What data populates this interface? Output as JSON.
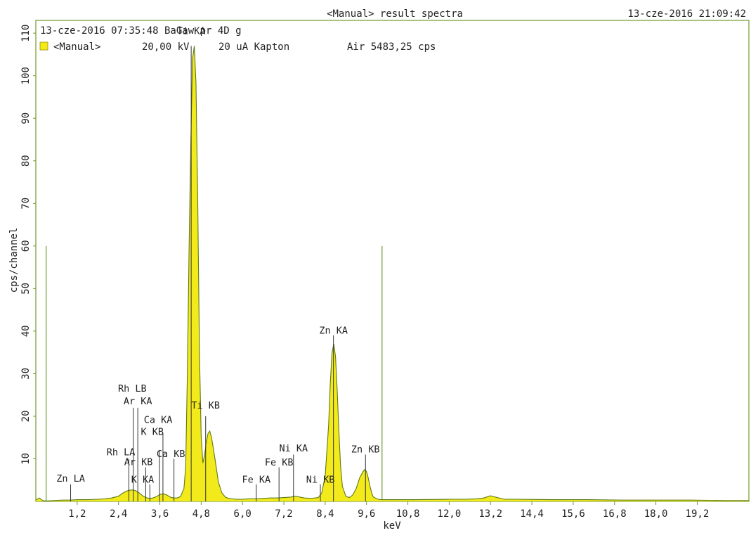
{
  "header": {
    "title": "<Manual> result spectra",
    "datetime": "13-cze-2016 21:09:42"
  },
  "info": {
    "sample_line": "13-cze-2016 07:35:48 BaGaw pr 4D g",
    "legend_label": "<Manual>",
    "voltage": "20,00 kV",
    "current_filter": "20 uA Kapton",
    "atmosphere_rate": "Air 5483,25 cps"
  },
  "colors": {
    "fill": "#f2ea1a",
    "outline": "#5f7a17",
    "frame": "#6e9a2e",
    "marker": "#333333",
    "legend_swatch": "#f2ea1a"
  },
  "chart_data": {
    "type": "area",
    "title": "<Manual> result spectra",
    "xlabel": "keV",
    "ylabel": "cps/channel",
    "xlim": [
      0,
      20.7
    ],
    "ylim": [
      0,
      113
    ],
    "x_ticks": [
      "1,2",
      "2,4",
      "3,6",
      "4,8",
      "6,0",
      "7,2",
      "8,4",
      "9,6",
      "10,8",
      "12,0",
      "13,2",
      "14,4",
      "15,6",
      "16,8",
      "18,0",
      "19,2"
    ],
    "x_tick_values": [
      1.2,
      2.4,
      3.6,
      4.8,
      6.0,
      7.2,
      8.4,
      9.6,
      10.8,
      12.0,
      13.2,
      14.4,
      15.6,
      16.8,
      18.0,
      19.2
    ],
    "y_ticks": [
      "10",
      "20",
      "30",
      "40",
      "50",
      "60",
      "70",
      "80",
      "90",
      "100",
      "110"
    ],
    "y_tick_values": [
      10,
      20,
      30,
      40,
      50,
      60,
      70,
      80,
      90,
      100,
      110
    ],
    "region_of_interest": [
      0.3,
      10.05
    ],
    "region_marker_height": 60,
    "spectrum": {
      "x": [
        0.0,
        0.1,
        0.2,
        0.3,
        0.5,
        0.8,
        1.0,
        1.2,
        1.5,
        1.8,
        2.0,
        2.2,
        2.4,
        2.5,
        2.6,
        2.7,
        2.8,
        2.9,
        3.0,
        3.1,
        3.2,
        3.3,
        3.4,
        3.5,
        3.6,
        3.7,
        3.8,
        3.9,
        4.0,
        4.1,
        4.2,
        4.3,
        4.35,
        4.4,
        4.45,
        4.5,
        4.55,
        4.6,
        4.65,
        4.7,
        4.75,
        4.8,
        4.85,
        4.9,
        4.95,
        5.0,
        5.05,
        5.1,
        5.2,
        5.3,
        5.4,
        5.5,
        5.6,
        5.8,
        6.0,
        6.2,
        6.4,
        6.6,
        6.8,
        7.0,
        7.2,
        7.4,
        7.5,
        7.6,
        7.8,
        8.0,
        8.2,
        8.3,
        8.4,
        8.5,
        8.55,
        8.6,
        8.65,
        8.7,
        8.75,
        8.8,
        8.85,
        8.9,
        9.0,
        9.1,
        9.2,
        9.3,
        9.4,
        9.5,
        9.55,
        9.6,
        9.65,
        9.7,
        9.75,
        9.8,
        9.9,
        10.0,
        10.5,
        11.0,
        12.0,
        12.5,
        12.8,
        13.0,
        13.2,
        13.4,
        13.6,
        14.0,
        15.0,
        16.0,
        17.0,
        18.0,
        19.0,
        20.0,
        20.7
      ],
      "y": [
        0.3,
        0.8,
        0.2,
        0.1,
        0.2,
        0.3,
        0.3,
        0.4,
        0.4,
        0.5,
        0.6,
        0.8,
        1.2,
        1.8,
        2.3,
        2.6,
        2.7,
        2.5,
        2.0,
        1.3,
        0.9,
        0.7,
        0.8,
        1.1,
        1.6,
        1.8,
        1.5,
        1.0,
        0.8,
        0.8,
        1.1,
        3.0,
        8.0,
        30.0,
        60.0,
        85.0,
        104.0,
        107.0,
        98.0,
        70.0,
        35.0,
        15.0,
        9.0,
        11.0,
        14.0,
        16.0,
        16.5,
        15.0,
        10.0,
        4.5,
        2.0,
        1.0,
        0.7,
        0.5,
        0.5,
        0.6,
        0.6,
        0.7,
        0.8,
        0.8,
        0.9,
        1.0,
        1.2,
        1.1,
        0.8,
        0.7,
        0.9,
        2.0,
        6.0,
        18.0,
        28.0,
        35.0,
        37.0,
        34.0,
        26.0,
        16.0,
        8.0,
        3.5,
        1.2,
        0.9,
        1.5,
        3.0,
        5.5,
        7.0,
        7.5,
        7.0,
        5.5,
        3.6,
        2.0,
        1.0,
        0.6,
        0.4,
        0.4,
        0.4,
        0.5,
        0.5,
        0.6,
        0.8,
        1.3,
        0.9,
        0.5,
        0.5,
        0.4,
        0.4,
        0.3,
        0.3,
        0.3,
        0.2,
        0.2
      ]
    },
    "peak_labels": [
      {
        "label": "Zn LA",
        "energy": 1.01,
        "line_top": 4,
        "text_y": 4.6,
        "label_x": 1.01
      },
      {
        "label": "Rh LA",
        "energy": 2.7,
        "line_top": 10,
        "text_y": 10.8,
        "label_x": 2.47
      },
      {
        "label": "Ar KA",
        "energy": 2.96,
        "line_top": 22,
        "text_y": 22.8,
        "label_x": 2.96
      },
      {
        "label": "Rh LB",
        "energy": 2.83,
        "line_top": 22,
        "text_y": 25.8,
        "label_x": 2.8
      },
      {
        "label": "Ar KB",
        "energy": 3.19,
        "line_top": 8,
        "text_y": 8.5,
        "label_x": 2.98
      },
      {
        "label": "K KA",
        "energy": 3.31,
        "line_top": 4,
        "text_y": 4.4,
        "label_x": 3.1
      },
      {
        "label": "K KB",
        "energy": 3.59,
        "line_top": 12,
        "text_y": 15.6,
        "label_x": 3.38
      },
      {
        "label": "Ca KA",
        "energy": 3.69,
        "line_top": 16,
        "text_y": 18.4,
        "label_x": 3.55
      },
      {
        "label": "Ca KB",
        "energy": 4.01,
        "line_top": 10,
        "text_y": 10.4,
        "label_x": 3.92
      },
      {
        "label": "Ti KA",
        "energy": 4.51,
        "line_top": 107,
        "text_y": 109.8,
        "label_x": 4.51
      },
      {
        "label": "Ti KB",
        "energy": 4.93,
        "line_top": 20,
        "text_y": 21.8,
        "label_x": 4.93
      },
      {
        "label": "Fe KA",
        "energy": 6.4,
        "line_top": 4,
        "text_y": 4.4,
        "label_x": 6.4
      },
      {
        "label": "Fe KB",
        "energy": 7.06,
        "line_top": 8,
        "text_y": 8.4,
        "label_x": 7.06
      },
      {
        "label": "Ni KA",
        "energy": 7.48,
        "line_top": 11,
        "text_y": 11.7,
        "label_x": 7.48
      },
      {
        "label": "Ni KB",
        "energy": 8.26,
        "line_top": 4,
        "text_y": 4.4,
        "label_x": 8.26
      },
      {
        "label": "Zn KA",
        "energy": 8.64,
        "line_top": 39,
        "text_y": 39.4,
        "label_x": 8.64
      },
      {
        "label": "Zn KB",
        "energy": 9.57,
        "line_top": 11,
        "text_y": 11.5,
        "label_x": 9.57
      }
    ],
    "grid": false,
    "legend_position": "top-left"
  }
}
